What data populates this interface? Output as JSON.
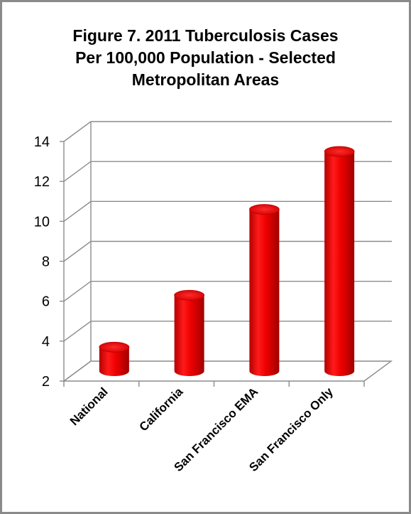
{
  "chart_data": {
    "type": "bar",
    "title_lines": [
      "Figure 7. 2011 Tuberculosis Cases",
      "Per 100,000 Population - Selected",
      "Metropolitan Areas"
    ],
    "categories": [
      "National",
      "California",
      "San Francisco EMA",
      "San Francisco Only"
    ],
    "values": [
      3.2,
      5.8,
      10.1,
      13.0
    ],
    "yticks": [
      2,
      4,
      6,
      8,
      10,
      12,
      14
    ],
    "ylim": [
      2,
      14
    ],
    "xlabel": "",
    "ylabel": "",
    "grid": true,
    "legend": "none",
    "bar_color": "#e8000b",
    "style": "3d-cylinder"
  }
}
